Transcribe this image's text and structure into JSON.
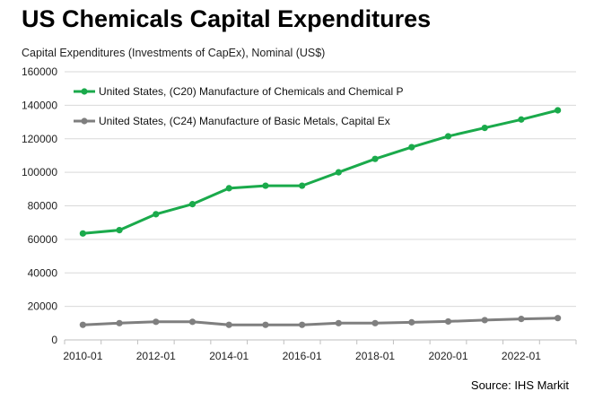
{
  "header": {
    "title": "US Chemicals Capital Expenditures",
    "subtitle": "Capital Expenditures (Investments of CapEx), Nominal (US$)"
  },
  "footer": {
    "source": "Source: IHS Markit"
  },
  "chart_data": {
    "type": "line",
    "title": "US Chemicals Capital Expenditures",
    "ylabel": "Capital Expenditures (Investments of CapEx), Nominal (US$)",
    "xlabel": "",
    "x": [
      "2010-01",
      "2011-01",
      "2012-01",
      "2013-01",
      "2014-01",
      "2015-01",
      "2016-01",
      "2017-01",
      "2018-01",
      "2019-01",
      "2020-01",
      "2021-01",
      "2022-01",
      "2023-01"
    ],
    "x_tick_labels": [
      "2010-01",
      "2012-01",
      "2014-01",
      "2016-01",
      "2018-01",
      "2020-01",
      "2022-01"
    ],
    "ylim": [
      0,
      160000
    ],
    "y_ticks": [
      0,
      20000,
      40000,
      60000,
      80000,
      100000,
      120000,
      140000,
      160000
    ],
    "grid": true,
    "legend_position": "top-left",
    "series": [
      {
        "name": "United States, (C20) Manufacture of Chemicals and Chemical P",
        "color": "#1aaa4b",
        "values": [
          63500,
          65500,
          75000,
          81000,
          90500,
          92000,
          92000,
          100000,
          108000,
          115000,
          121500,
          126500,
          131500,
          137000
        ]
      },
      {
        "name": "United States, (C24) Manufacture of Basic Metals, Capital Ex",
        "color": "#7f7f7f",
        "values": [
          9000,
          10000,
          10800,
          10800,
          9000,
          9000,
          9000,
          10000,
          10000,
          10500,
          11000,
          11800,
          12500,
          13000
        ]
      }
    ]
  }
}
